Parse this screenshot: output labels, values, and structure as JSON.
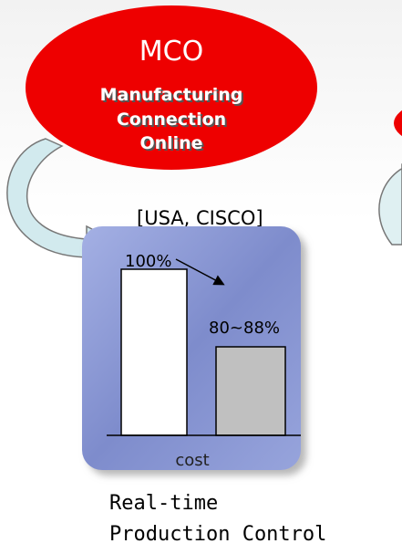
{
  "bubble": {
    "title": "MCO",
    "lines": [
      "Manufacturing",
      "Connection",
      "Online"
    ]
  },
  "source": "[USA, CISCO]",
  "chart_box": {
    "bar_labels": [
      "100%",
      "80~88%"
    ],
    "axis_label": "cost"
  },
  "caption": [
    "Real-time",
    "Production Control"
  ]
}
